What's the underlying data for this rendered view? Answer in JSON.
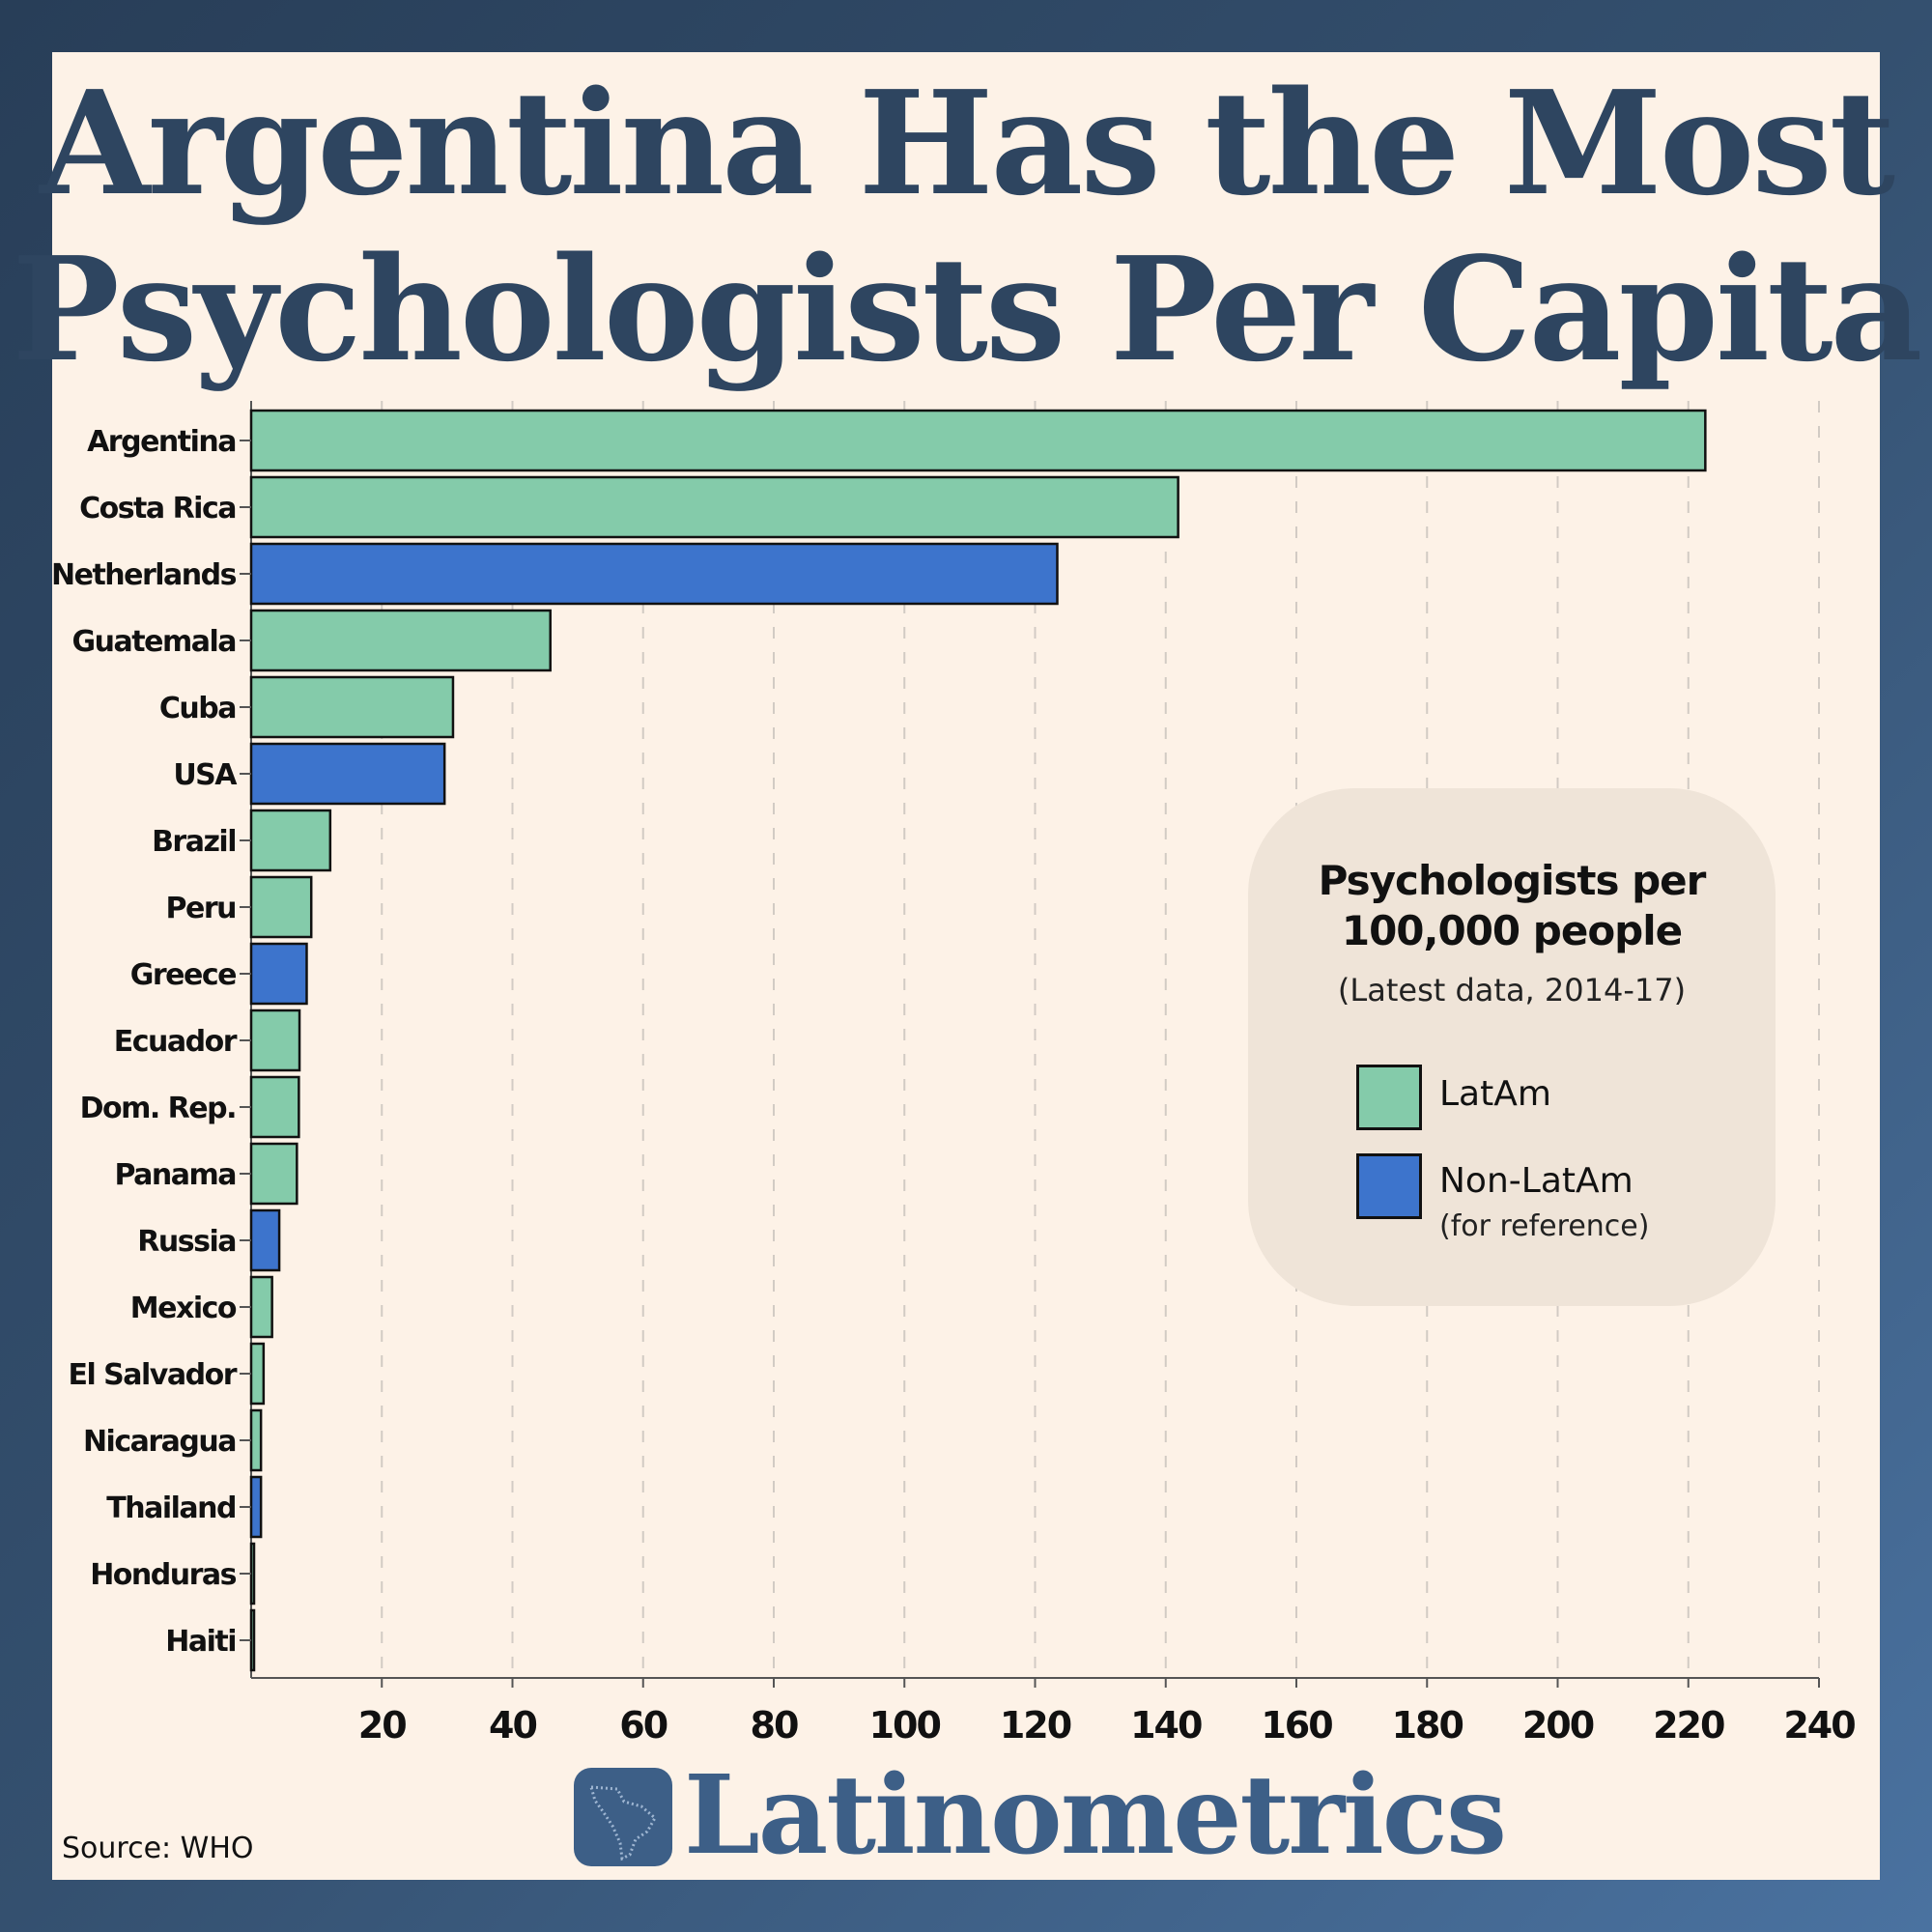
{
  "title": {
    "line1": "Argentina Has the Most",
    "line2": "Psychologists Per Capita"
  },
  "legend": {
    "title_line1": "Psychologists per",
    "title_line2": "100,000 people",
    "subtitle": "(Latest data, 2014-17)",
    "items": [
      {
        "label": "LatAm",
        "color": "#84cbaa"
      },
      {
        "label": "Non-LatAm",
        "note": "(for reference)",
        "color": "#3d74cc"
      }
    ]
  },
  "brand": "Latinometrics",
  "source": "Source: WHO",
  "chart_data": {
    "type": "bar",
    "orientation": "horizontal",
    "title": "Argentina Has the Most Psychologists Per Capita",
    "xlabel": "Psychologists per 100,000 people",
    "xlim": [
      0,
      240
    ],
    "xticks": [
      20,
      40,
      60,
      80,
      100,
      120,
      140,
      160,
      180,
      200,
      220,
      240
    ],
    "grid": true,
    "legend_position": "right",
    "categories": [
      "Argentina",
      "Costa Rica",
      "Netherlands",
      "Guatemala",
      "Cuba",
      "USA",
      "Brazil",
      "Peru",
      "Greece",
      "Ecuador",
      "Dom. Rep.",
      "Panama",
      "Russia",
      "Mexico",
      "El Salvador",
      "Nicaragua",
      "Thailand",
      "Honduras",
      "Haiti"
    ],
    "values": [
      222.6,
      141.9,
      123.4,
      45.8,
      30.9,
      29.6,
      12.1,
      9.2,
      8.5,
      7.4,
      7.3,
      7.0,
      4.3,
      3.2,
      1.9,
      1.5,
      1.5,
      0.4,
      0.2
    ],
    "group": [
      "LatAm",
      "LatAm",
      "Non-LatAm",
      "LatAm",
      "LatAm",
      "Non-LatAm",
      "LatAm",
      "LatAm",
      "Non-LatAm",
      "LatAm",
      "LatAm",
      "LatAm",
      "Non-LatAm",
      "LatAm",
      "LatAm",
      "LatAm",
      "Non-LatAm",
      "LatAm",
      "LatAm"
    ]
  }
}
